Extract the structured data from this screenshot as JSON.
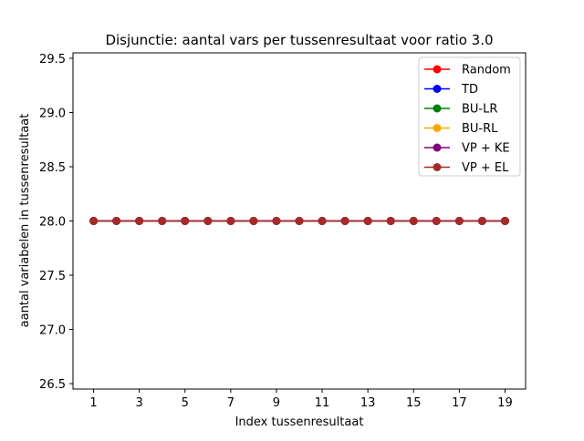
{
  "chart_data": {
    "type": "line",
    "title": "Disjunctie: aantal vars per tussenresultaat voor ratio 3.0",
    "xlabel": "Index tussenresultaat",
    "ylabel": "aantal variabelen in tussenresultaat",
    "x": [
      1,
      2,
      3,
      4,
      5,
      6,
      7,
      8,
      9,
      10,
      11,
      12,
      13,
      14,
      15,
      16,
      17,
      18,
      19
    ],
    "xlim": [
      0.1,
      19.9
    ],
    "ylim": [
      26.45,
      29.55
    ],
    "xticks": [
      1,
      3,
      5,
      7,
      9,
      11,
      13,
      15,
      17,
      19
    ],
    "xtick_labels": [
      "1",
      "3",
      "5",
      "7",
      "9",
      "11",
      "13",
      "15",
      "17",
      "19"
    ],
    "yticks": [
      26.5,
      27.0,
      27.5,
      28.0,
      28.5,
      29.0,
      29.5
    ],
    "ytick_labels": [
      "26.5",
      "27.0",
      "27.5",
      "28.0",
      "28.5",
      "29.0",
      "29.5"
    ],
    "grid": false,
    "legend_position": "top-right",
    "series": [
      {
        "name": "Random",
        "color": "#ff0000",
        "values": [
          28,
          28,
          28,
          28,
          28,
          28,
          28,
          28,
          28,
          28,
          28,
          28,
          28,
          28,
          28,
          28,
          28,
          28,
          28
        ]
      },
      {
        "name": "TD",
        "color": "#0000ff",
        "values": [
          28,
          28,
          28,
          28,
          28,
          28,
          28,
          28,
          28,
          28,
          28,
          28,
          28,
          28,
          28,
          28,
          28,
          28,
          28
        ]
      },
      {
        "name": "BU-LR",
        "color": "#008000",
        "values": [
          28,
          28,
          28,
          28,
          28,
          28,
          28,
          28,
          28,
          28,
          28,
          28,
          28,
          28,
          28,
          28,
          28,
          28,
          28
        ]
      },
      {
        "name": "BU-RL",
        "color": "#ffa500",
        "values": [
          28,
          28,
          28,
          28,
          28,
          28,
          28,
          28,
          28,
          28,
          28,
          28,
          28,
          28,
          28,
          28,
          28,
          28,
          28
        ]
      },
      {
        "name": "VP + KE",
        "color": "#800080",
        "values": [
          28,
          28,
          28,
          28,
          28,
          28,
          28,
          28,
          28,
          28,
          28,
          28,
          28,
          28,
          28,
          28,
          28,
          28,
          28
        ]
      },
      {
        "name": "VP + EL",
        "color": "#a52a2a",
        "values": [
          28,
          28,
          28,
          28,
          28,
          28,
          28,
          28,
          28,
          28,
          28,
          28,
          28,
          28,
          28,
          28,
          28,
          28,
          28
        ]
      }
    ]
  }
}
